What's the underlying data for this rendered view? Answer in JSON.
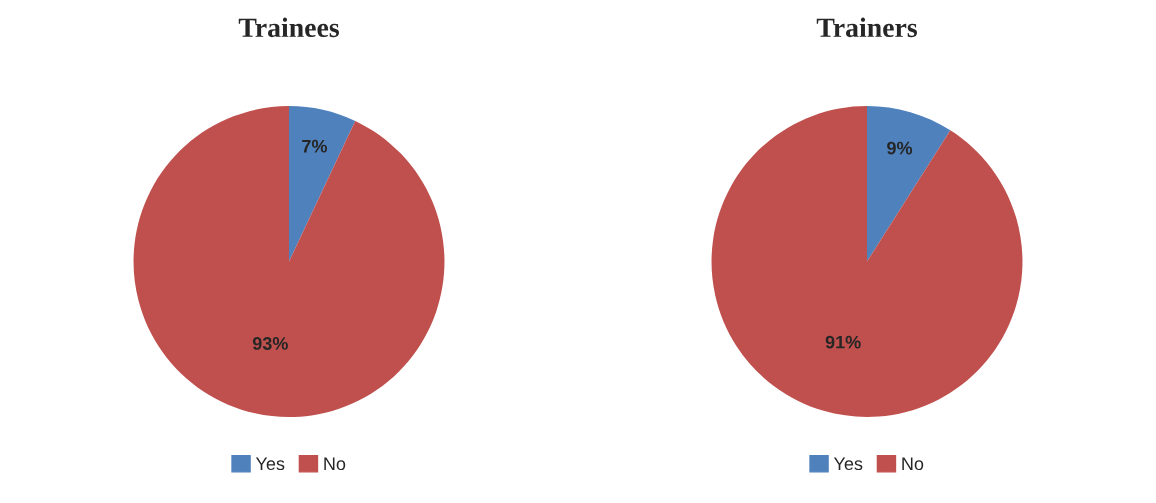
{
  "chart_data": [
    {
      "type": "pie",
      "title": "Trainees",
      "categories": [
        "Yes",
        "No"
      ],
      "values": [
        7,
        93
      ],
      "colors": [
        "#4f81bd",
        "#c0504d"
      ],
      "value_labels": [
        "7%",
        "93%"
      ],
      "legend": "bottom"
    },
    {
      "type": "pie",
      "title": "Trainers",
      "categories": [
        "Yes",
        "No"
      ],
      "values": [
        9,
        91
      ],
      "colors": [
        "#4f81bd",
        "#c0504d"
      ],
      "value_labels": [
        "9%",
        "91%"
      ],
      "legend": "bottom"
    }
  ]
}
